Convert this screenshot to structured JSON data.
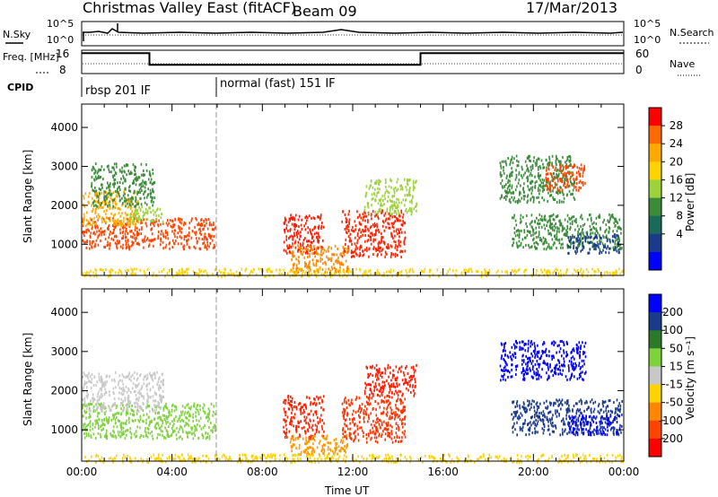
{
  "header": {
    "title": "Christmas Valley East (fitACF)",
    "beam": "Beam 09",
    "date": "17/Mar/2013"
  },
  "chart_data": [
    {
      "type": "line",
      "panel": "nsky-nsearch",
      "left_label": "N.Sky",
      "right_label": "N.Search",
      "left_ticks": [
        "10^5",
        "10^0"
      ],
      "right_ticks": [
        "10^5",
        "10^0"
      ]
    },
    {
      "type": "line",
      "panel": "freq-nave",
      "left_label": "Freq. [MHz]",
      "right_label": "Nave",
      "left_ticks": [
        "16",
        "8"
      ],
      "right_ticks": [
        "60",
        "0"
      ],
      "freq_segments": [
        {
          "x0": 0.0,
          "x1": 3.0,
          "y": 15.0
        },
        {
          "x0": 3.0,
          "x1": 15.0,
          "y": 11.0
        },
        {
          "x0": 15.0,
          "x1": 24.0,
          "y": 15.0
        }
      ],
      "freq_range": [
        8,
        16
      ]
    },
    {
      "type": "table",
      "panel": "cpid",
      "label": "CPID",
      "modes": [
        {
          "start": 0.0,
          "text": "rbsp 201 IF"
        },
        {
          "start": 6.0,
          "text": "normal (fast) 151 IF"
        }
      ]
    },
    {
      "type": "heatmap",
      "panel": "power",
      "ylabel": "Slant Range [km]",
      "yticks": [
        1000,
        2000,
        3000,
        4000
      ],
      "ylim": [
        200,
        4600
      ],
      "xlim": [
        0,
        24
      ],
      "colorbar": {
        "label": "Power [dB]",
        "ticks": [
          "28",
          "24",
          "20",
          "16",
          "12",
          "8",
          "4"
        ],
        "colors": [
          "#ff0000",
          "#ff6a00",
          "#ffaa00",
          "#ffd200",
          "#9cd23c",
          "#3a8c3a",
          "#1a6a5a",
          "#1a3a8a",
          "#0000ff"
        ]
      },
      "regions": [
        {
          "t0": 0.0,
          "t1": 5.9,
          "r0": 900,
          "r1": 1700,
          "color": "#ff4400"
        },
        {
          "t0": 0.0,
          "t1": 2.5,
          "r0": 1500,
          "r1": 2400,
          "color": "#ffaa00"
        },
        {
          "t0": 0.4,
          "t1": 3.2,
          "r0": 2000,
          "r1": 3100,
          "color": "#3a8c3a"
        },
        {
          "t0": 2.0,
          "t1": 3.6,
          "r0": 1600,
          "r1": 2000,
          "color": "#9cd23c"
        },
        {
          "t0": 8.9,
          "t1": 10.7,
          "r0": 800,
          "r1": 1800,
          "color": "#ff1a00"
        },
        {
          "t0": 11.5,
          "t1": 14.3,
          "r0": 700,
          "r1": 1900,
          "color": "#ff2200"
        },
        {
          "t0": 9.2,
          "t1": 11.8,
          "r0": 300,
          "r1": 1000,
          "color": "#ff8800"
        },
        {
          "t0": 12.5,
          "t1": 14.8,
          "r0": 1800,
          "r1": 2700,
          "color": "#9cd23c"
        },
        {
          "t0": 18.5,
          "t1": 21.8,
          "r0": 2100,
          "r1": 3300,
          "color": "#3a8c3a"
        },
        {
          "t0": 20.5,
          "t1": 22.3,
          "r0": 2400,
          "r1": 3100,
          "color": "#ff4400"
        },
        {
          "t0": 19.0,
          "t1": 23.9,
          "r0": 900,
          "r1": 1800,
          "color": "#3a8c3a"
        },
        {
          "t0": 21.5,
          "t1": 23.8,
          "r0": 800,
          "r1": 1300,
          "color": "#1a3a8a"
        },
        {
          "t0": 0.0,
          "t1": 24.0,
          "r0": 200,
          "r1": 400,
          "color": "#ffd200"
        }
      ]
    },
    {
      "type": "heatmap",
      "panel": "velocity",
      "ylabel": "Slant Range [km]",
      "yticks": [
        1000,
        2000,
        3000,
        4000
      ],
      "ylim": [
        200,
        4600
      ],
      "xlim": [
        0,
        24
      ],
      "xticks": [
        "00:00",
        "04:00",
        "08:00",
        "12:00",
        "16:00",
        "20:00",
        "00:00"
      ],
      "xlabel": "Time UT",
      "colorbar": {
        "label": "Velocity [m s⁻¹]",
        "ticks": [
          "200",
          "100",
          "50",
          "15",
          "-15",
          "-50",
          "-100",
          "-200"
        ],
        "colors": [
          "#0000ff",
          "#1a3a8a",
          "#2a7a2a",
          "#7ed23c",
          "#c8c8c8",
          "#ffd200",
          "#ff8800",
          "#ff4400",
          "#ff0000"
        ]
      },
      "regions": [
        {
          "t0": 0.0,
          "t1": 5.9,
          "r0": 800,
          "r1": 1700,
          "color": "#7ed23c"
        },
        {
          "t0": 0.0,
          "t1": 3.6,
          "r0": 1500,
          "r1": 2500,
          "color": "#c8c8c8"
        },
        {
          "t0": 8.9,
          "t1": 10.7,
          "r0": 800,
          "r1": 1900,
          "color": "#ff2200"
        },
        {
          "t0": 11.5,
          "t1": 14.3,
          "r0": 700,
          "r1": 1900,
          "color": "#ff3300"
        },
        {
          "t0": 9.2,
          "t1": 11.8,
          "r0": 400,
          "r1": 900,
          "color": "#ff9900"
        },
        {
          "t0": 12.5,
          "t1": 14.8,
          "r0": 1900,
          "r1": 2700,
          "color": "#ff1a00"
        },
        {
          "t0": 18.5,
          "t1": 22.3,
          "r0": 2300,
          "r1": 3300,
          "color": "#0000ff"
        },
        {
          "t0": 19.0,
          "t1": 23.9,
          "r0": 900,
          "r1": 1800,
          "color": "#1a3a8a"
        },
        {
          "t0": 21.5,
          "t1": 23.8,
          "r0": 900,
          "r1": 1400,
          "color": "#0000ff"
        },
        {
          "t0": 0.0,
          "t1": 24.0,
          "r0": 200,
          "r1": 400,
          "color": "#ffd200"
        }
      ]
    }
  ]
}
